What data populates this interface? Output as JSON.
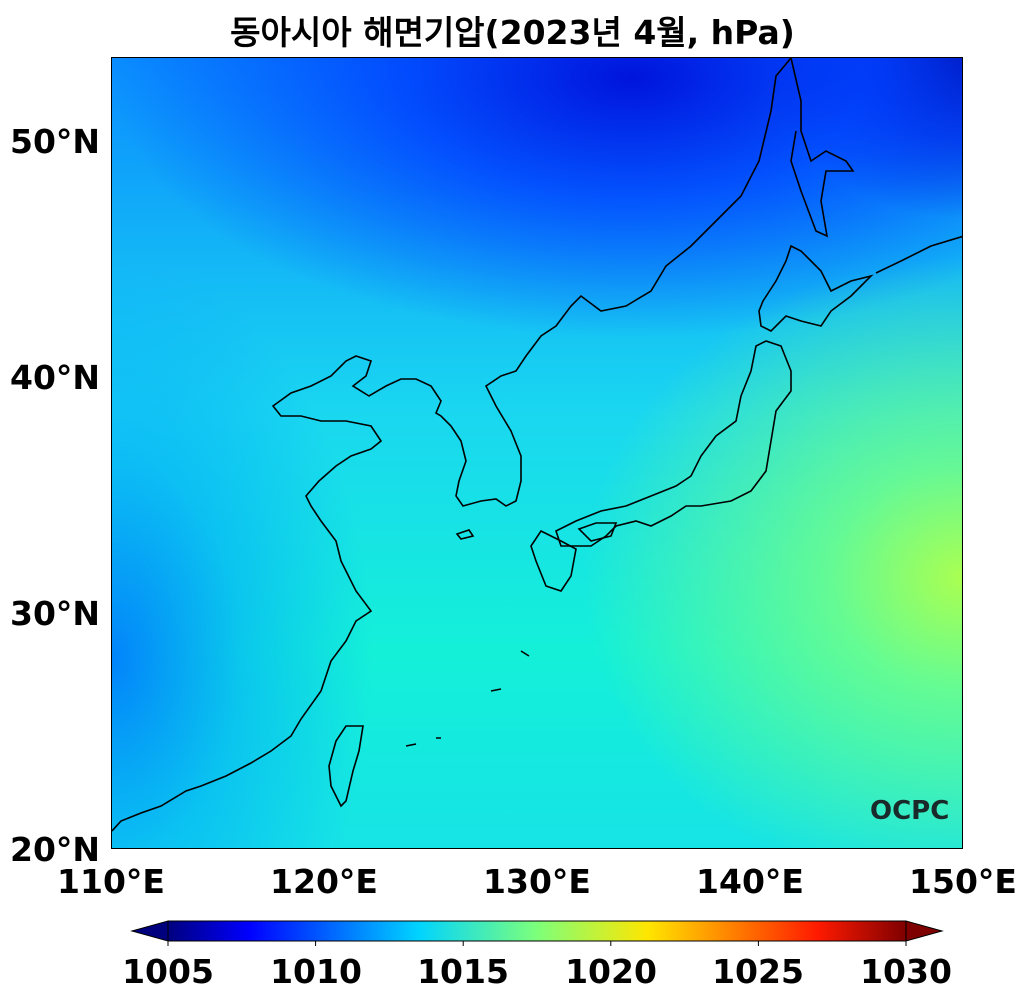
{
  "title": "동아시아 해면기압(2023년 4월, hPa)",
  "chart_data": {
    "type": "heatmap",
    "title": "동아시아 해면기압(2023년 4월, hPa)",
    "x_ticks": [
      "110°E",
      "120°E",
      "130°E",
      "140°E",
      "150°E"
    ],
    "y_ticks": [
      "20°N",
      "30°N",
      "40°N",
      "50°N"
    ],
    "xlim": [
      110,
      150
    ],
    "ylim": [
      20,
      53.5
    ],
    "colorbar": {
      "ticks": [
        "1005",
        "1010",
        "1015",
        "1020",
        "1025",
        "1030"
      ],
      "range": [
        1005,
        1030
      ],
      "colormap": "jet",
      "extend": "both"
    },
    "field_summary": {
      "low_region": "north (Manchuria/Sea of Okhotsk), about 1007-1010 hPa",
      "high_region": "southeast Pacific near 150°E 30-35°N, about 1018-1019 hPa"
    }
  },
  "logo": "OCPC"
}
